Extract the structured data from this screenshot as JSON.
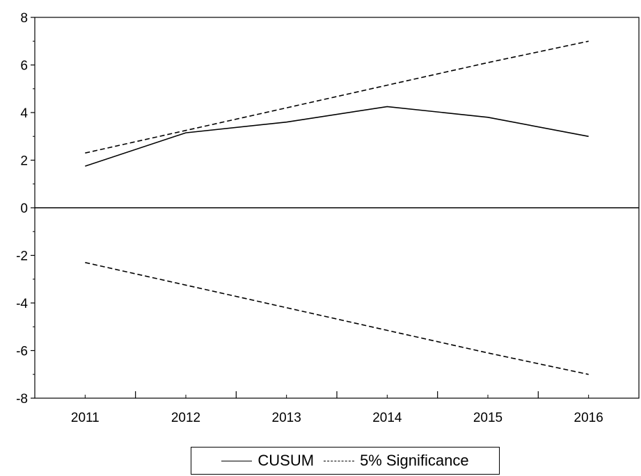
{
  "chart_data": {
    "type": "line",
    "title": "",
    "xlabel": "",
    "ylabel": "",
    "x": [
      "2011",
      "2012",
      "2013",
      "2014",
      "2015",
      "2016"
    ],
    "ylim": [
      -8,
      8
    ],
    "yticks": [
      8,
      6,
      4,
      2,
      0,
      -2,
      -4,
      -6,
      -8
    ],
    "ytick_labels": [
      "8",
      "6",
      "4",
      "2",
      "0",
      "-2",
      "-4",
      "-6",
      "-8"
    ],
    "zero_line": true,
    "grid": false,
    "legend_position": "bottom-center",
    "series": [
      {
        "name": "CUSUM",
        "style": "solid",
        "color": "#000000",
        "values": [
          1.75,
          3.15,
          3.6,
          4.25,
          3.8,
          3.0
        ]
      },
      {
        "name": "5% Significance",
        "style": "dashed",
        "color": "#000000",
        "values": [
          2.3,
          3.25,
          4.2,
          5.15,
          6.1,
          7.0
        ]
      },
      {
        "name": "",
        "style": "dashed",
        "color": "#000000",
        "values": [
          -2.3,
          -3.25,
          -4.2,
          -5.15,
          -6.1,
          -7.0
        ]
      }
    ]
  }
}
